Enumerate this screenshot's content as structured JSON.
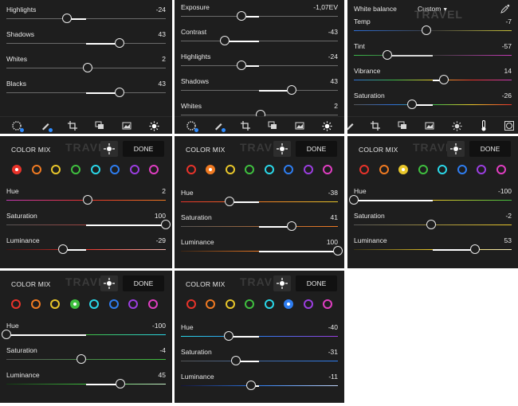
{
  "panel_light_a": {
    "sliders": [
      {
        "label": "Highlights",
        "value": "-24"
      },
      {
        "label": "Shadows",
        "value": "43"
      },
      {
        "label": "Whites",
        "value": "2"
      },
      {
        "label": "Blacks",
        "value": "43"
      }
    ]
  },
  "panel_light_b": {
    "sliders": [
      {
        "label": "Exposure",
        "value": "-1,07EV"
      },
      {
        "label": "Contrast",
        "value": "-43"
      },
      {
        "label": "Highlights",
        "value": "-24"
      },
      {
        "label": "Shadows",
        "value": "43"
      },
      {
        "label": "Whites",
        "value": "2"
      }
    ]
  },
  "panel_color": {
    "title": "White balance",
    "preset": "Custom",
    "sliders": [
      {
        "label": "Temp",
        "value": "-7"
      },
      {
        "label": "Tint",
        "value": "-57"
      },
      {
        "label": "Vibrance",
        "value": "14"
      },
      {
        "label": "Saturation",
        "value": "-26"
      }
    ]
  },
  "color_mix": {
    "title": "COLOR MIX",
    "done_label": "DONE",
    "watermark": "TRAVEL",
    "swatch_colors": [
      "#e8332a",
      "#f07a22",
      "#e8c62a",
      "#3fbf3f",
      "#2ad7e8",
      "#2e7df0",
      "#9b3ee0",
      "#e03ec2"
    ],
    "swatch_names": [
      "red",
      "orange",
      "yellow",
      "green",
      "aqua",
      "blue",
      "purple",
      "magenta"
    ]
  },
  "mix_red": {
    "hue": {
      "label": "Hue",
      "value": "2"
    },
    "saturation": {
      "label": "Saturation",
      "value": "100"
    },
    "luminance": {
      "label": "Luminance",
      "value": "-29"
    }
  },
  "mix_orange": {
    "hue": {
      "label": "Hue",
      "value": "-38"
    },
    "saturation": {
      "label": "Saturation",
      "value": "41"
    },
    "luminance": {
      "label": "Luminance",
      "value": "100"
    }
  },
  "mix_yellow": {
    "hue": {
      "label": "Hue",
      "value": "-100"
    },
    "saturation": {
      "label": "Saturation",
      "value": "-2"
    },
    "luminance": {
      "label": "Luminance",
      "value": "53"
    }
  },
  "mix_green": {
    "hue": {
      "label": "Hue",
      "value": "-100"
    },
    "saturation": {
      "label": "Saturation",
      "value": "-4"
    },
    "luminance": {
      "label": "Luminance",
      "value": "45"
    }
  },
  "mix_blue": {
    "hue": {
      "label": "Hue",
      "value": "-40"
    },
    "saturation": {
      "label": "Saturation",
      "value": "-31"
    },
    "luminance": {
      "label": "Luminance",
      "value": "-11"
    }
  },
  "toolbar_icons": [
    "presets-icon",
    "healing-icon",
    "crop-icon",
    "layers-icon",
    "image-icon",
    "light-icon",
    "color-temperature-icon",
    "vignette-icon"
  ]
}
